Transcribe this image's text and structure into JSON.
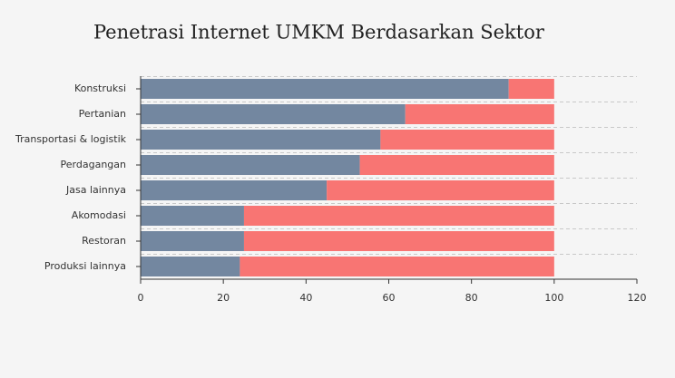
{
  "chart_data": {
    "type": "stacked-bar-horizontal",
    "title": "Penetrasi Internet UMKM Berdasarkan Sektor",
    "categories": [
      "Konstruksi",
      "Pertanian",
      "Transportasi & logistik",
      "Perdagangan",
      "Jasa lainnya",
      "Akomodasi",
      "Restoran",
      "Produksi lainnya"
    ],
    "series": [
      {
        "color": "#7387a0",
        "values": [
          89,
          64,
          58,
          53,
          45,
          25,
          25,
          24
        ]
      },
      {
        "color": "#f87573",
        "values": [
          11,
          36,
          42,
          47,
          55,
          75,
          75,
          76
        ]
      }
    ],
    "xlim": [
      0,
      120
    ],
    "xticks": [
      0,
      20,
      40,
      60,
      80,
      100,
      120
    ],
    "grid": true
  }
}
